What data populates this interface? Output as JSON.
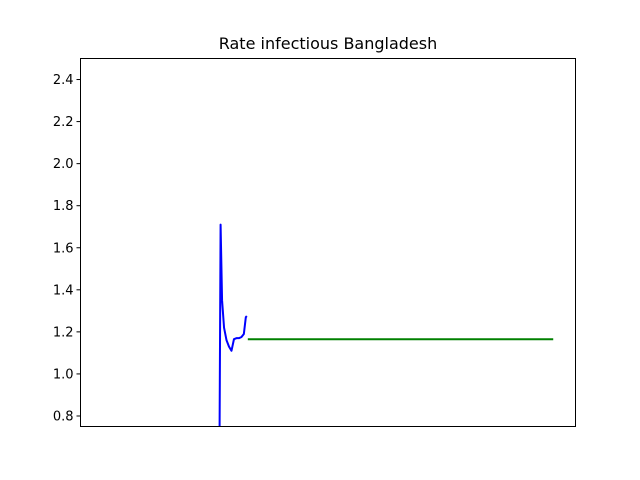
{
  "chart_data": {
    "type": "line",
    "title": "Rate infectious Bangladesh",
    "xlabel": "",
    "ylabel": "",
    "xlim": [
      0,
      100
    ],
    "ylim": [
      0.75,
      2.5
    ],
    "x_ticks_visible": false,
    "y_ticks": [
      0.8,
      1.0,
      1.2,
      1.4,
      1.6,
      1.8,
      2.0,
      2.2,
      2.4
    ],
    "y_tick_labels": [
      "0.8",
      "1.0",
      "1.2",
      "1.4",
      "1.6",
      "1.8",
      "2.0",
      "2.2",
      "2.4"
    ],
    "grid": false,
    "legend": null,
    "series": [
      {
        "color": "#0000ff",
        "x": [
          28.1,
          28.3,
          28.6,
          29.0,
          29.5,
          30.0,
          30.5,
          31.0,
          31.5,
          32.0,
          32.5,
          33.0,
          33.4,
          33.6
        ],
        "y": [
          0.75,
          1.71,
          1.35,
          1.22,
          1.16,
          1.13,
          1.11,
          1.165,
          1.17,
          1.17,
          1.175,
          1.19,
          1.27,
          1.275
        ]
      },
      {
        "color": "#008000",
        "x": [
          33.8,
          95.5
        ],
        "y": [
          1.165,
          1.165
        ]
      }
    ]
  }
}
